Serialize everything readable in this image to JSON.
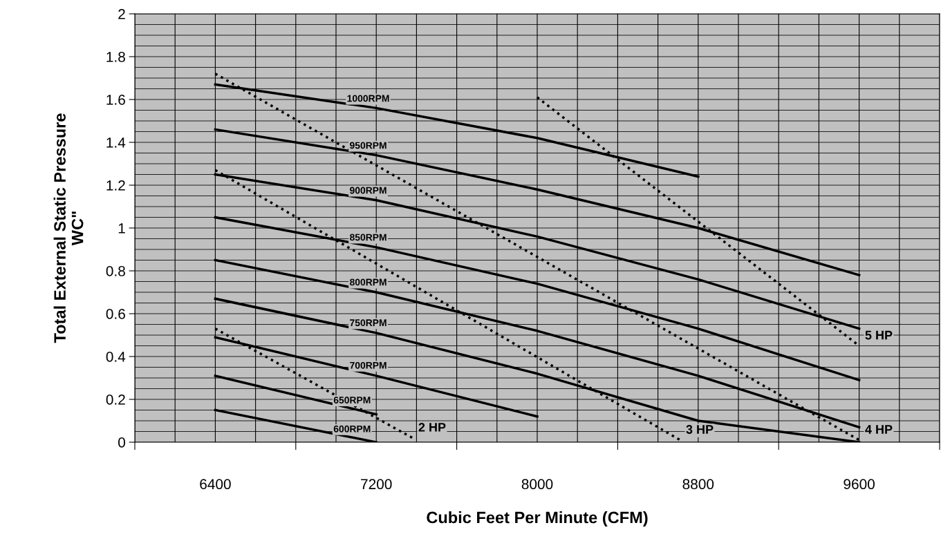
{
  "chart_data": {
    "type": "line",
    "xlabel": "Cubic Feet Per Minute (CFM)",
    "ylabel": "Total External Static Pressure\nWC\"",
    "xlim": [
      6000,
      10000
    ],
    "ylim": [
      0,
      2
    ],
    "xticks": [
      {
        "value": 6000,
        "label": null
      },
      6400,
      {
        "value": 6800,
        "label": null
      },
      7200,
      {
        "value": 7600,
        "label": null
      },
      8000,
      {
        "value": 8400,
        "label": null
      },
      8800,
      {
        "value": 9200,
        "label": null
      },
      9600,
      {
        "value": 10000,
        "label": null
      }
    ],
    "yticks": [
      0,
      0.2,
      0.4,
      0.6,
      0.8,
      1,
      1.2,
      1.4,
      1.6,
      1.8,
      2
    ],
    "grid": true,
    "line_style": "solid",
    "marker": "none",
    "series": [
      {
        "name": "1000RPM",
        "color": "#000000",
        "x": [
          6400,
          7200,
          8000,
          8800
        ],
        "values": [
          1.67,
          1.56,
          1.42,
          1.24
        ]
      },
      {
        "name": "950RPM",
        "color": "#000000",
        "x": [
          6400,
          7200,
          8000,
          8800,
          9600
        ],
        "values": [
          1.46,
          1.34,
          1.18,
          1.0,
          0.78
        ]
      },
      {
        "name": "900RPM",
        "color": "#000000",
        "x": [
          6400,
          7200,
          8000,
          8800,
          9600
        ],
        "values": [
          1.25,
          1.13,
          0.96,
          0.76,
          0.53
        ]
      },
      {
        "name": "850RPM",
        "color": "#000000",
        "x": [
          6400,
          7200,
          8000,
          8800,
          9600
        ],
        "values": [
          1.05,
          0.91,
          0.74,
          0.53,
          0.29
        ]
      },
      {
        "name": "800RPM",
        "color": "#000000",
        "x": [
          6400,
          7200,
          8000,
          8800,
          9600
        ],
        "values": [
          0.85,
          0.7,
          0.52,
          0.31,
          0.07
        ]
      },
      {
        "name": "750RPM",
        "color": "#000000",
        "x": [
          6400,
          7200,
          8000,
          8800,
          9600
        ],
        "values": [
          0.67,
          0.51,
          0.32,
          0.1,
          0.0
        ]
      },
      {
        "name": "700RPM",
        "color": "#000000",
        "x": [
          6400,
          7200,
          8000
        ],
        "values": [
          0.49,
          0.31,
          0.12
        ]
      },
      {
        "name": "650RPM",
        "color": "#000000",
        "x": [
          6400,
          7200
        ],
        "values": [
          0.31,
          0.13
        ]
      },
      {
        "name": "600RPM",
        "color": "#000000",
        "x": [
          6400,
          7200
        ],
        "values": [
          0.15,
          0.0
        ]
      },
      {
        "name": "5 HP",
        "color": "#000000",
        "line_style": "dotted",
        "x": [
          8000,
          9600
        ],
        "values": [
          1.61,
          0.45
        ]
      },
      {
        "name": "4 HP",
        "color": "#000000",
        "line_style": "dotted",
        "x": [
          6400,
          9600
        ],
        "values": [
          1.72,
          0.01
        ]
      },
      {
        "name": "3 HP",
        "color": "#000000",
        "line_style": "dotted",
        "x": [
          6400,
          8710
        ],
        "values": [
          1.27,
          0.01
        ]
      },
      {
        "name": "2 HP",
        "color": "#000000",
        "line_style": "dotted",
        "x": [
          6400,
          7380
        ],
        "values": [
          0.53,
          0.02
        ]
      }
    ]
  }
}
